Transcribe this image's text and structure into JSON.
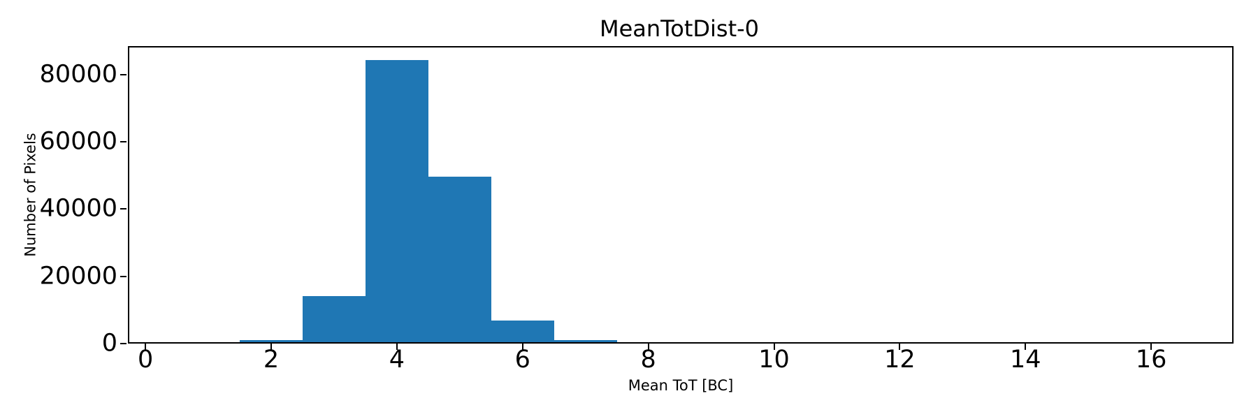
{
  "chart_data": {
    "type": "bar",
    "subtype": "histogram",
    "title": "MeanTotDist-0",
    "xlabel": "Mean ToT [BC]",
    "ylabel": "Number of Pixels",
    "bars": [
      {
        "x_start": 1.5,
        "x_end": 2.5,
        "count": 600
      },
      {
        "x_start": 2.5,
        "x_end": 3.5,
        "count": 13800
      },
      {
        "x_start": 3.5,
        "x_end": 4.5,
        "count": 84000
      },
      {
        "x_start": 4.5,
        "x_end": 5.5,
        "count": 49300
      },
      {
        "x_start": 5.5,
        "x_end": 6.5,
        "count": 6500
      },
      {
        "x_start": 6.5,
        "x_end": 7.5,
        "count": 600
      }
    ],
    "xlim": [
      -0.28,
      17.31
    ],
    "ylim": [
      0,
      88500
    ],
    "x_ticks": [
      0,
      2,
      4,
      6,
      8,
      10,
      12,
      14,
      16
    ],
    "y_ticks": [
      0,
      20000,
      40000,
      60000,
      80000
    ],
    "bar_color": "#1f77b4",
    "axis_color": "#000000",
    "grid": false,
    "legend_position": "none"
  }
}
